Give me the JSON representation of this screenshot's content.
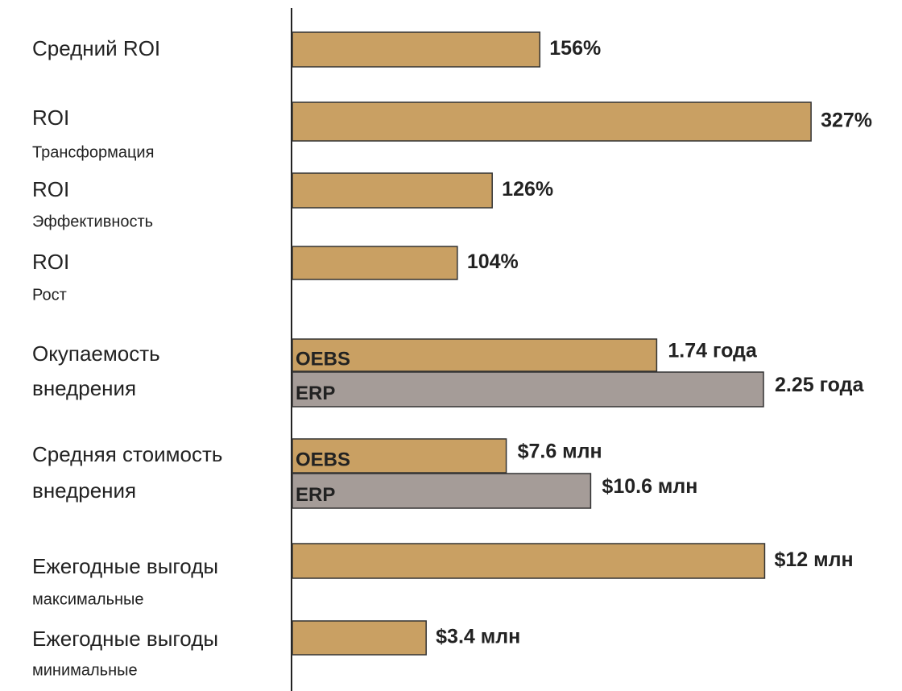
{
  "chart_data": [
    {
      "type": "bar",
      "categories": [
        "Средний ROI",
        "ROI",
        "ROI",
        "ROI"
      ],
      "subcategories": [
        null,
        "Трансформация",
        "Эффективность",
        "Рост"
      ],
      "values": [
        156,
        327,
        126,
        104
      ],
      "value_labels": [
        "156%",
        "327%",
        "126%",
        "104%"
      ],
      "color": "#c9a063",
      "xlim": [
        0,
        330
      ]
    },
    {
      "type": "grouped-bar",
      "category_lines": [
        "Окупаемость",
        "внедрения"
      ],
      "series": [
        {
          "name": "OEBS",
          "color": "#c9a063",
          "values": [
            1.74
          ],
          "value_labels": [
            "1.74 года"
          ]
        },
        {
          "name": "ERP",
          "color": "#a59c98",
          "values": [
            2.25
          ],
          "value_labels": [
            "2.25 года"
          ]
        }
      ],
      "xlim": [
        0,
        2.5
      ]
    },
    {
      "type": "grouped-bar",
      "category_lines": [
        "Средняя стоимость",
        "внедрения"
      ],
      "series": [
        {
          "name": "OEBS",
          "color": "#c9a063",
          "values": [
            7.6
          ],
          "value_labels": [
            "$7.6 млн"
          ]
        },
        {
          "name": "ERP",
          "color": "#a59c98",
          "values": [
            10.6
          ],
          "value_labels": [
            "$10.6 млн"
          ]
        }
      ],
      "xlim": [
        0,
        18.6
      ]
    },
    {
      "type": "bar",
      "categories": [
        "Ежегодные выгоды",
        "Ежегодные выгоды"
      ],
      "subcategories": [
        "максимальные",
        "минимальные"
      ],
      "values": [
        12,
        3.4
      ],
      "value_labels": [
        "$12 млн",
        "$3.4 млн"
      ],
      "color": "#c9a063",
      "xlim": [
        0,
        13.3
      ]
    }
  ]
}
